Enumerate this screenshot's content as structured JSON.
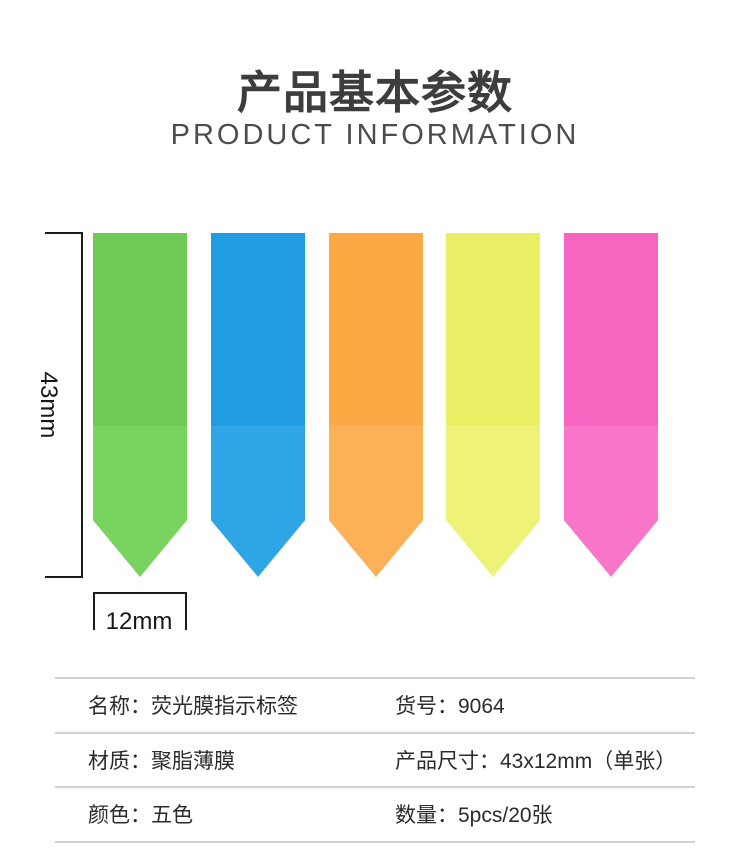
{
  "header": {
    "title_cn": "产品基本参数",
    "title_en": "PRODUCT INFORMATION"
  },
  "product_image": {
    "description": "five fluorescent film arrow index tabs pointing down",
    "arrows": [
      {
        "name": "green-arrow-tab",
        "color_top": "#6eca54",
        "color_bottom": "#79d35f"
      },
      {
        "name": "blue-arrow-tab",
        "color_top": "#209de2",
        "color_bottom": "#2ea6e6"
      },
      {
        "name": "orange-arrow-tab",
        "color_top": "#faa945",
        "color_bottom": "#fcb156"
      },
      {
        "name": "yellow-arrow-tab",
        "color_top": "#e9ee64",
        "color_bottom": "#eef377"
      },
      {
        "name": "pink-arrow-tab",
        "color_top": "#f765c0",
        "color_bottom": "#f876c9"
      }
    ],
    "height_label": "43mm",
    "width_label": "12mm"
  },
  "spec_table": {
    "rows": [
      {
        "left": "名称：荧光膜指示标签",
        "right": "货号：9064"
      },
      {
        "left": "材质：聚脂薄膜",
        "right": "产品尺寸：43x12mm（单张）"
      },
      {
        "left": "颜色：五色",
        "right": "数量：5pcs/20张"
      }
    ]
  }
}
